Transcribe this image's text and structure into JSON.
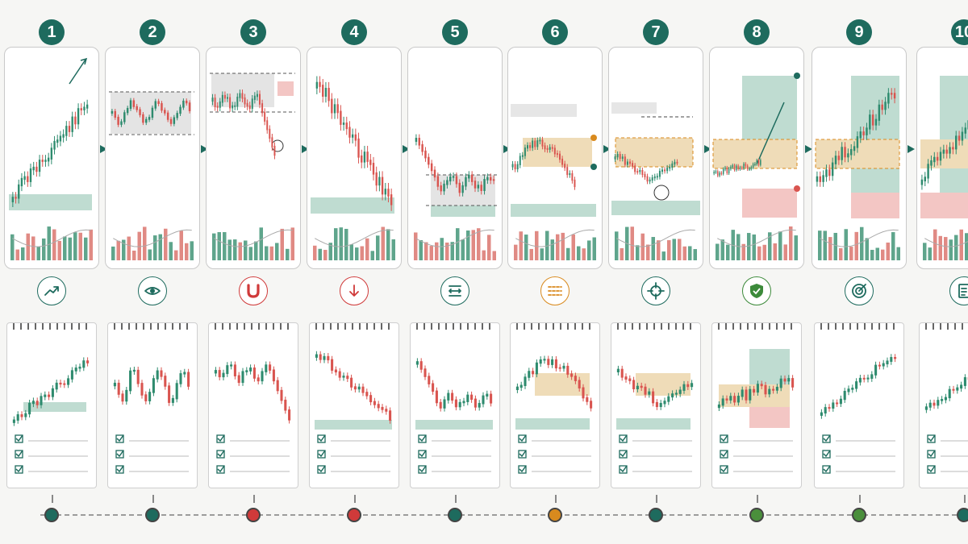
{
  "steps": [
    {
      "number": "1",
      "color": "#1e6b5e",
      "chart": "uptrend",
      "icon": "trend-up-icon",
      "icon_color": "#1e6b5e",
      "dot_color": "#1e6b5e"
    },
    {
      "number": "2",
      "color": "#1e6b5e",
      "chart": "range",
      "icon": "eye-icon",
      "icon_color": "#1e6b5e",
      "dot_color": "#1e6b5e"
    },
    {
      "number": "3",
      "color": "#1e6b5e",
      "chart": "breakdown",
      "icon": "magnet-icon",
      "icon_color": "#d03a3a",
      "dot_color": "#d03a3a"
    },
    {
      "number": "4",
      "color": "#1e6b5e",
      "chart": "downtrend",
      "icon": "arrow-down-icon",
      "icon_color": "#d03a3a",
      "dot_color": "#d03a3a"
    },
    {
      "number": "5",
      "color": "#1e6b5e",
      "chart": "base",
      "icon": "range-bounds-icon",
      "icon_color": "#1e6b5e",
      "dot_color": "#1e6b5e"
    },
    {
      "number": "6",
      "color": "#1e6b5e",
      "chart": "zone",
      "icon": "sliders-icon",
      "icon_color": "#d98a1e",
      "dot_color": "#d98a1e"
    },
    {
      "number": "7",
      "color": "#1e6b5e",
      "chart": "entry",
      "icon": "crosshair-icon",
      "icon_color": "#1e6b5e",
      "dot_color": "#1e6b5e"
    },
    {
      "number": "8",
      "color": "#1e6b5e",
      "chart": "riskreward",
      "icon": "shield-icon",
      "icon_color": "#3c8a3a",
      "dot_color": "#4a8f3c"
    },
    {
      "number": "9",
      "color": "#1e6b5e",
      "chart": "target",
      "icon": "target-icon",
      "icon_color": "#1e6b5e",
      "dot_color": "#4a8f3c"
    },
    {
      "number": "10",
      "color": "#1e6b5e",
      "chart": "review",
      "icon": "clipboard-icon",
      "icon_color": "#1e6b5e",
      "dot_color": "#1e6b5e"
    }
  ],
  "palette": {
    "green": "#2e8b6e",
    "red": "#d9544f",
    "zone_green": "#bfdcd1",
    "zone_red": "#f3c6c4",
    "zone_orange": "#efdcb8",
    "gray": "#9a9a9a"
  }
}
